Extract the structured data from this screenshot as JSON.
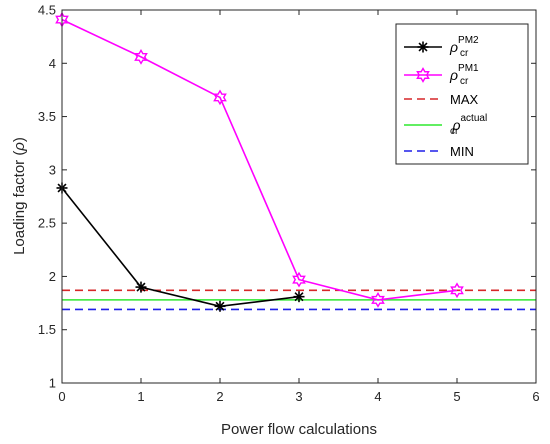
{
  "chart_data": {
    "type": "line",
    "xlabel": "Power flow calculations",
    "ylabel_main": "Loading factor (",
    "ylabel_symbol": "ρ",
    "ylabel_close": ")",
    "xlim": [
      0,
      6
    ],
    "ylim": [
      1,
      4.5
    ],
    "xticks": [
      "0",
      "1",
      "2",
      "3",
      "4",
      "5",
      "6"
    ],
    "yticks": [
      "1",
      "1.5",
      "2",
      "2.5",
      "3",
      "3.5",
      "4",
      "4.5"
    ],
    "grid": false,
    "legend_position": "top-right",
    "series": [
      {
        "key": "pm2",
        "symbol": "ρ",
        "sub": "cr",
        "sup": "PM2",
        "color": "#000000",
        "style": "solid",
        "marker": "asterisk",
        "x": [
          0,
          1,
          2,
          3
        ],
        "y": [
          2.83,
          1.9,
          1.72,
          1.81
        ]
      },
      {
        "key": "pm1",
        "symbol": "ρ",
        "sub": "cr",
        "sup": "PM1",
        "color": "#ff00ff",
        "style": "solid",
        "marker": "hexagram",
        "x": [
          0,
          1,
          2,
          3,
          4,
          5
        ],
        "y": [
          4.41,
          4.06,
          3.68,
          1.97,
          1.78,
          1.87
        ]
      },
      {
        "key": "max",
        "label": "MAX",
        "color": "#d62728",
        "style": "dashed",
        "hline": 1.87
      },
      {
        "key": "actual",
        "symbol": "ρ",
        "sub": "cr",
        "sup": "actual",
        "color": "#2ee82e",
        "style": "solid",
        "hline": 1.78
      },
      {
        "key": "min",
        "label": "MIN",
        "color": "#1f1fe8",
        "style": "dashed",
        "hline": 1.69
      }
    ]
  }
}
